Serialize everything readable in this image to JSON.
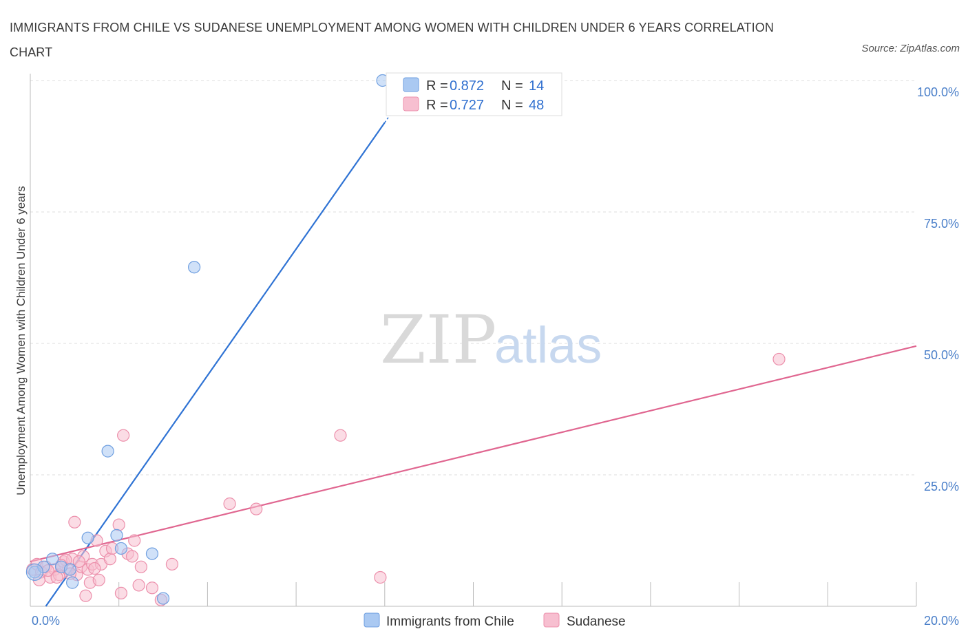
{
  "title": "IMMIGRANTS FROM CHILE VS SUDANESE UNEMPLOYMENT AMONG WOMEN WITH CHILDREN UNDER 6 YEARS CORRELATION CHART",
  "source": "Source: ZipAtlas.com",
  "watermark": {
    "zip": "ZIP",
    "atlas": "atlas"
  },
  "colors": {
    "chile_fill": "#aac9f2",
    "chile_stroke": "#6f9fe0",
    "chile_line": "#2f73d4",
    "sudanese_fill": "#f7bfd0",
    "sudanese_stroke": "#ec8fab",
    "sudanese_line": "#e06690",
    "grid": "#dddddd",
    "tick_text": "#4a7fc9"
  },
  "legend": {
    "rows": [
      {
        "r_label": "R = ",
        "r_value": "0.872",
        "n_label": "N = ",
        "n_value": "14"
      },
      {
        "r_label": "R = ",
        "r_value": "0.727",
        "n_label": "N = ",
        "n_value": "48"
      }
    ]
  },
  "chart_data": {
    "type": "scatter",
    "title": "IMMIGRANTS FROM CHILE VS SUDANESE UNEMPLOYMENT AMONG WOMEN WITH CHILDREN UNDER 6 YEARS CORRELATION CHART",
    "xlabel": "",
    "ylabel": "Unemployment Among Women with Children Under 6 years",
    "xlim": [
      0,
      20
    ],
    "ylim": [
      0,
      100
    ],
    "x_ticks": [
      "0.0%",
      "20.0%"
    ],
    "y_ticks": [
      {
        "value": 100,
        "label": "100.0%"
      },
      {
        "value": 75,
        "label": "75.0%"
      },
      {
        "value": 50,
        "label": "50.0%"
      },
      {
        "value": 25,
        "label": "25.0%"
      }
    ],
    "grid": true,
    "series": [
      {
        "name": "Immigrants from Chile",
        "r": 0.872,
        "n": 14,
        "trend": {
          "x0": 0.35,
          "y0": 0,
          "x1": 8.0,
          "y1": 92
        },
        "points": [
          [
            0.1,
            6.5
          ],
          [
            0.3,
            7.5
          ],
          [
            0.5,
            9.0
          ],
          [
            0.7,
            7.5
          ],
          [
            0.95,
            4.5
          ],
          [
            1.3,
            13.0
          ],
          [
            1.75,
            29.5
          ],
          [
            1.95,
            13.5
          ],
          [
            2.05,
            11.0
          ],
          [
            2.75,
            10.0
          ],
          [
            3.0,
            1.5
          ],
          [
            3.7,
            64.5
          ],
          [
            7.95,
            100.0
          ],
          [
            0.9,
            7.0
          ]
        ]
      },
      {
        "name": "Sudanese",
        "r": 0.727,
        "n": 48,
        "trend": {
          "x0": 0,
          "y0": 8.5,
          "x1": 20.0,
          "y1": 49.5
        },
        "points": [
          [
            0.05,
            7.0
          ],
          [
            0.15,
            8.0
          ],
          [
            0.25,
            6.5
          ],
          [
            0.35,
            7.5
          ],
          [
            0.45,
            5.5
          ],
          [
            0.55,
            7.0
          ],
          [
            0.65,
            6.0
          ],
          [
            0.75,
            8.5
          ],
          [
            0.85,
            7.0
          ],
          [
            0.95,
            9.0
          ],
          [
            1.05,
            6.0
          ],
          [
            1.15,
            7.5
          ],
          [
            0.2,
            5.0
          ],
          [
            0.4,
            6.8
          ],
          [
            0.6,
            5.5
          ],
          [
            1.0,
            16.0
          ],
          [
            1.2,
            9.5
          ],
          [
            1.3,
            7.0
          ],
          [
            1.4,
            8.0
          ],
          [
            1.5,
            12.5
          ],
          [
            1.6,
            8.0
          ],
          [
            1.7,
            10.5
          ],
          [
            1.8,
            9.0
          ],
          [
            1.85,
            11.0
          ],
          [
            2.0,
            15.5
          ],
          [
            2.05,
            2.5
          ],
          [
            2.1,
            32.5
          ],
          [
            2.2,
            10.0
          ],
          [
            2.3,
            9.5
          ],
          [
            2.35,
            12.5
          ],
          [
            2.45,
            4.0
          ],
          [
            2.5,
            7.5
          ],
          [
            2.75,
            3.5
          ],
          [
            2.95,
            1.2
          ],
          [
            3.2,
            8.0
          ],
          [
            4.5,
            19.5
          ],
          [
            5.1,
            18.5
          ],
          [
            7.0,
            32.5
          ],
          [
            7.9,
            5.5
          ],
          [
            16.9,
            47.0
          ],
          [
            1.25,
            2.0
          ],
          [
            1.35,
            4.5
          ],
          [
            1.55,
            5.0
          ],
          [
            0.8,
            8.8
          ],
          [
            1.1,
            8.5
          ],
          [
            0.9,
            6.2
          ],
          [
            0.7,
            7.8
          ],
          [
            1.45,
            7.2
          ]
        ]
      }
    ]
  },
  "bottom_legend": [
    "Immigrants from Chile",
    "Sudanese"
  ]
}
